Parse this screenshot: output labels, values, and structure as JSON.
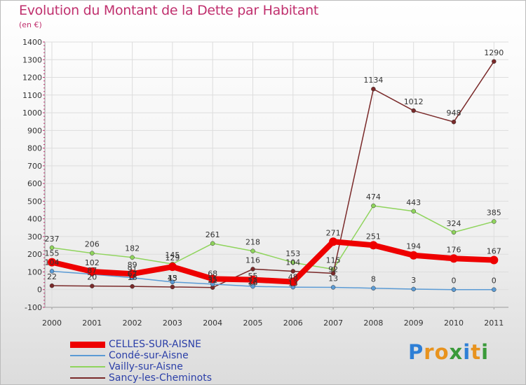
{
  "title": "Evolution du Montant de la Dette par Habitant",
  "subtitle": "(en €)",
  "logo": {
    "letters": [
      "P",
      "r",
      "o",
      "x",
      "i",
      "t",
      "i"
    ],
    "colors": [
      "#2e7fd6",
      "#e8931e",
      "#e8931e",
      "#3a9a3a",
      "#2e7fd6",
      "#e8931e",
      "#3a9a3a"
    ]
  },
  "chart_data": {
    "type": "line",
    "x": [
      "2000",
      "2001",
      "2002",
      "2003",
      "2004",
      "2005",
      "2006",
      "2007",
      "2008",
      "2009",
      "2010",
      "2011"
    ],
    "ylim": [
      -100,
      1400
    ],
    "yticks": [
      "1400",
      "1300",
      "1200",
      "1100",
      "1000",
      "900",
      "800",
      "700",
      "600",
      "500",
      "400",
      "300",
      "200",
      "100",
      "0",
      "-100"
    ],
    "grid": true,
    "legend_position": "bottom-left",
    "series": [
      {
        "name": "CELLES-SUR-AISNE",
        "color": "#ee0000",
        "width": 8,
        "values": [
          155,
          102,
          89,
          129,
          61,
          56,
          44,
          271,
          251,
          194,
          176,
          167
        ],
        "labels": [
          "155",
          "102",
          "89",
          "129",
          "",
          "",
          "",
          "271",
          "251",
          "194",
          "176",
          "167"
        ]
      },
      {
        "name": "Condé-sur-Aisne",
        "color": "#5b9bd5",
        "width": 1.5,
        "values": [
          104,
          87,
          67,
          43,
          31,
          18,
          14,
          13,
          8,
          3,
          0,
          0
        ],
        "labels": [
          "104",
          "",
          "",
          "",
          "",
          "",
          "",
          "13",
          "8",
          "3",
          "0",
          "0"
        ]
      },
      {
        "name": "Vailly-sur-Aisne",
        "color": "#8fd45c",
        "width": 1.5,
        "values": [
          237,
          206,
          182,
          145,
          261,
          218,
          153,
          115,
          474,
          443,
          324,
          385
        ],
        "labels": [
          "237",
          "206",
          "182",
          "145",
          "261",
          "218",
          "153",
          "115",
          "474",
          "443",
          "324",
          "385"
        ]
      },
      {
        "name": "Sancy-les-Cheminots",
        "color": "#7a2a2a",
        "width": 1.5,
        "values": [
          22,
          20,
          18,
          15,
          12,
          116,
          104,
          92,
          1134,
          1012,
          948,
          1290
        ],
        "labels": [
          "22",
          "20",
          "18",
          "15",
          "",
          "116",
          "104",
          "",
          "1134",
          "1012",
          "948",
          "1290"
        ]
      }
    ],
    "extra_labels": [
      "87",
      "67",
      "43",
      "68",
      "31",
      "16",
      "13",
      "55",
      "23",
      "48",
      "35",
      "91",
      "92"
    ]
  }
}
